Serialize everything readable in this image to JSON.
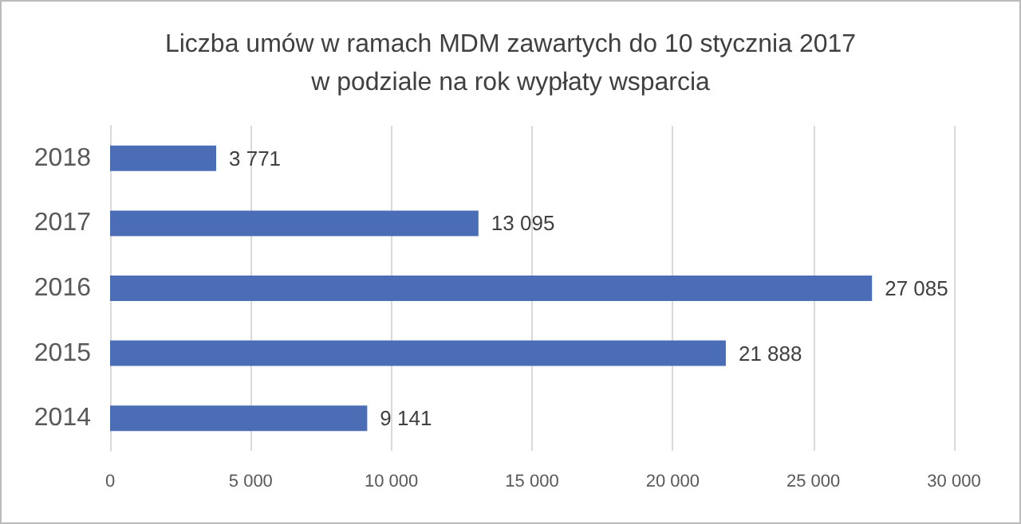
{
  "chart_data": {
    "type": "bar",
    "orientation": "horizontal",
    "title": "Liczba umów w ramach MDM zawartych do 10 stycznia 2017\nw podziale na rok wypłaty wsparcia",
    "categories": [
      "2018",
      "2017",
      "2016",
      "2015",
      "2014"
    ],
    "values": [
      3771,
      13095,
      27085,
      21888,
      9141
    ],
    "value_labels": [
      "3 771",
      "13 095",
      "27 085",
      "21 888",
      "9 141"
    ],
    "color": "#4a6db5",
    "xlim": [
      0,
      30000
    ],
    "xticks": [
      0,
      {
        "value": 5000,
        "label": "5 000"
      },
      {
        "value": 10000,
        "label": "10 000"
      },
      {
        "value": 15000,
        "label": "15 000"
      },
      {
        "value": 20000,
        "label": "20 000"
      },
      {
        "value": 25000,
        "label": "25 000"
      },
      {
        "value": 30000,
        "label": "30 000"
      }
    ],
    "grid": "x"
  }
}
